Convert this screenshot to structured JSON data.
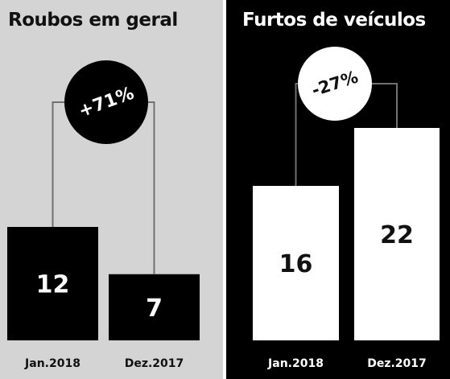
{
  "colors": {
    "left_background": "#d4d4d4",
    "left_bar": "#000000",
    "left_bar_text": "#ffffff",
    "left_badge": "#000000",
    "left_badge_text": "#ffffff",
    "right_background": "#000000",
    "right_bar": "#ffffff",
    "right_bar_text": "#111111",
    "right_badge": "#ffffff",
    "right_badge_text": "#111111",
    "connector": "#707070"
  },
  "chart_data": [
    {
      "type": "bar",
      "title": "Roubos em geral",
      "categories": [
        "Jan.2018",
        "Dez.2017"
      ],
      "values": [
        12,
        7
      ],
      "value_labels": [
        "12",
        "7"
      ],
      "change_label": "+71%",
      "ylim": [
        0,
        40
      ],
      "grid": false
    },
    {
      "type": "bar",
      "title": "Furtos de veículos",
      "categories": [
        "Jan.2018",
        "Dez.2017"
      ],
      "values": [
        16,
        22
      ],
      "value_labels": [
        "16",
        "22"
      ],
      "change_label": "-27%",
      "ylim": [
        0,
        40
      ],
      "grid": false
    }
  ]
}
